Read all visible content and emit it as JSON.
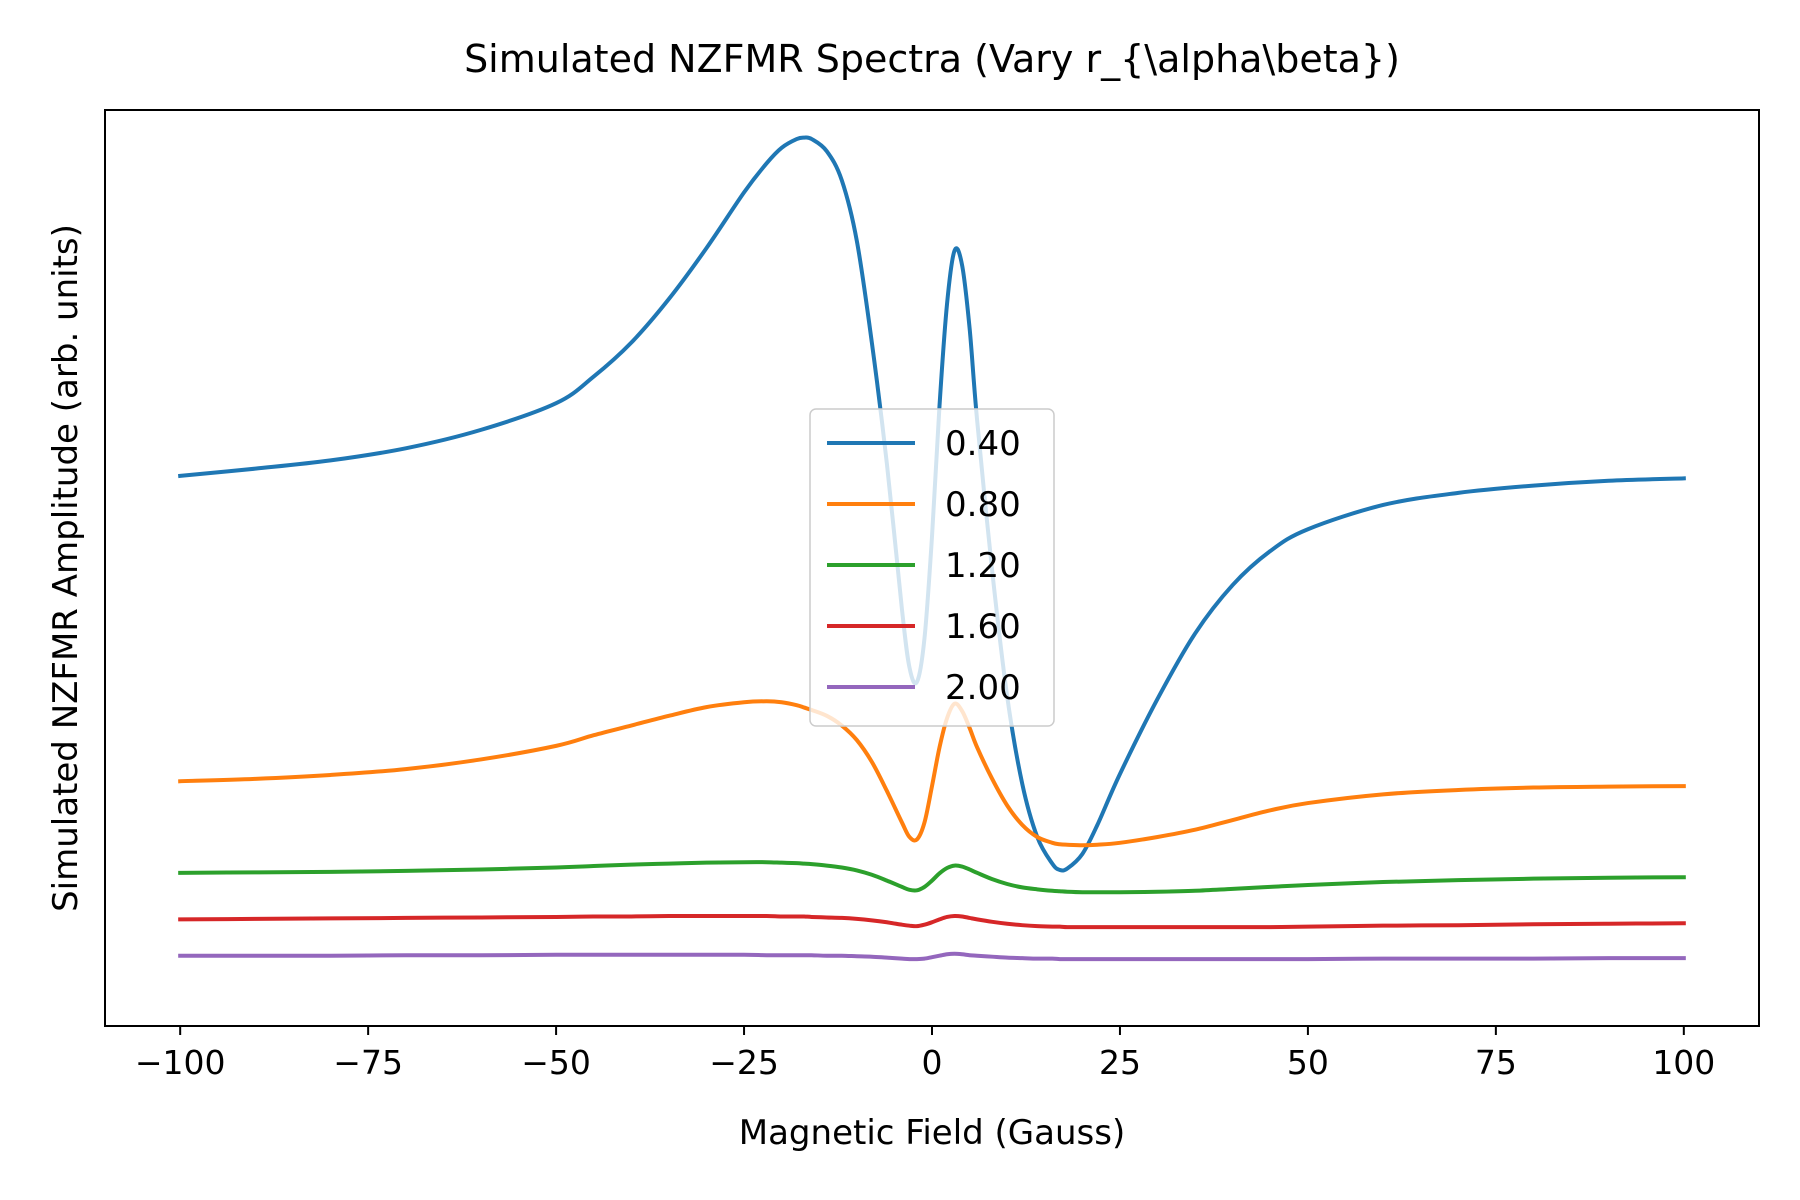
{
  "chart_data": {
    "type": "line",
    "title": "Simulated NZFMR Spectra (Vary r_{\\alpha\\beta})",
    "xlabel": "Magnetic Field (Gauss)",
    "ylabel": "Simulated NZFMR Amplitude (arb. units)",
    "xlim": [
      -110,
      110
    ],
    "ylim": [
      -7.5,
      11.4
    ],
    "x_ticks": [
      -100,
      -75,
      -50,
      -25,
      0,
      25,
      50,
      75,
      100
    ],
    "x_tick_labels": [
      "−100",
      "−75",
      "−50",
      "−25",
      "0",
      "25",
      "50",
      "75",
      "100"
    ],
    "y_ticks_shown": false,
    "grid": false,
    "legend_position": "center",
    "x": [
      -100,
      -90,
      -80,
      -70,
      -60,
      -50,
      -45,
      -40,
      -35,
      -30,
      -25,
      -22,
      -20,
      -18,
      -17,
      -16,
      -14,
      -12,
      -10,
      -8,
      -6,
      -4,
      -3,
      -2,
      -1,
      0,
      1,
      2,
      3,
      4,
      5,
      6,
      8,
      10,
      12,
      14,
      16,
      17,
      18,
      20,
      22,
      25,
      30,
      35,
      40,
      45,
      50,
      60,
      70,
      80,
      90,
      100
    ],
    "series": [
      {
        "name": "0.40",
        "color": "#1f77b4",
        "values": [
          3.85,
          4.0,
          4.17,
          4.42,
          4.8,
          5.35,
          5.9,
          6.6,
          7.5,
          8.55,
          9.7,
          10.3,
          10.62,
          10.8,
          10.83,
          10.8,
          10.55,
          9.95,
          8.7,
          6.6,
          4.1,
          1.1,
          -0.1,
          -0.4,
          0.5,
          2.6,
          5.3,
          7.4,
          8.5,
          8.2,
          6.9,
          5.0,
          1.9,
          -0.7,
          -2.5,
          -3.6,
          -4.15,
          -4.28,
          -4.25,
          -3.95,
          -3.35,
          -2.3,
          -0.75,
          0.6,
          1.6,
          2.3,
          2.75,
          3.25,
          3.5,
          3.65,
          3.75,
          3.8
        ]
      },
      {
        "name": "0.80",
        "color": "#ff7f0e",
        "values": [
          -2.45,
          -2.4,
          -2.32,
          -2.2,
          -2.0,
          -1.72,
          -1.5,
          -1.3,
          -1.1,
          -0.92,
          -0.82,
          -0.8,
          -0.82,
          -0.88,
          -0.93,
          -0.98,
          -1.1,
          -1.3,
          -1.6,
          -2.05,
          -2.65,
          -3.3,
          -3.6,
          -3.65,
          -3.3,
          -2.55,
          -1.75,
          -1.15,
          -0.85,
          -1.0,
          -1.35,
          -1.75,
          -2.4,
          -2.95,
          -3.35,
          -3.6,
          -3.72,
          -3.75,
          -3.76,
          -3.77,
          -3.76,
          -3.72,
          -3.6,
          -3.45,
          -3.25,
          -3.05,
          -2.9,
          -2.72,
          -2.63,
          -2.58,
          -2.56,
          -2.55
        ]
      },
      {
        "name": "1.20",
        "color": "#2ca02c",
        "values": [
          -4.34,
          -4.33,
          -4.32,
          -4.3,
          -4.27,
          -4.23,
          -4.2,
          -4.17,
          -4.15,
          -4.13,
          -4.12,
          -4.12,
          -4.13,
          -4.14,
          -4.15,
          -4.16,
          -4.19,
          -4.23,
          -4.29,
          -4.38,
          -4.5,
          -4.63,
          -4.69,
          -4.7,
          -4.63,
          -4.5,
          -4.35,
          -4.24,
          -4.19,
          -4.21,
          -4.27,
          -4.34,
          -4.47,
          -4.57,
          -4.64,
          -4.68,
          -4.71,
          -4.72,
          -4.73,
          -4.74,
          -4.74,
          -4.74,
          -4.73,
          -4.71,
          -4.67,
          -4.63,
          -4.59,
          -4.53,
          -4.49,
          -4.46,
          -4.44,
          -4.43
        ]
      },
      {
        "name": "1.60",
        "color": "#d62728",
        "values": [
          -5.3,
          -5.29,
          -5.28,
          -5.27,
          -5.26,
          -5.25,
          -5.24,
          -5.24,
          -5.23,
          -5.23,
          -5.23,
          -5.23,
          -5.24,
          -5.24,
          -5.24,
          -5.25,
          -5.26,
          -5.27,
          -5.29,
          -5.32,
          -5.36,
          -5.41,
          -5.43,
          -5.44,
          -5.41,
          -5.36,
          -5.3,
          -5.25,
          -5.23,
          -5.24,
          -5.27,
          -5.3,
          -5.35,
          -5.39,
          -5.42,
          -5.44,
          -5.45,
          -5.45,
          -5.46,
          -5.46,
          -5.46,
          -5.46,
          -5.46,
          -5.46,
          -5.46,
          -5.46,
          -5.45,
          -5.43,
          -5.42,
          -5.4,
          -5.39,
          -5.38
        ]
      },
      {
        "name": "2.00",
        "color": "#9467bd",
        "values": [
          -6.05,
          -6.05,
          -6.05,
          -6.04,
          -6.04,
          -6.03,
          -6.03,
          -6.03,
          -6.03,
          -6.03,
          -6.03,
          -6.04,
          -6.04,
          -6.04,
          -6.04,
          -6.04,
          -6.05,
          -6.05,
          -6.06,
          -6.07,
          -6.09,
          -6.11,
          -6.12,
          -6.12,
          -6.11,
          -6.08,
          -6.05,
          -6.02,
          -6.01,
          -6.02,
          -6.04,
          -6.05,
          -6.07,
          -6.09,
          -6.1,
          -6.11,
          -6.11,
          -6.12,
          -6.12,
          -6.12,
          -6.12,
          -6.12,
          -6.12,
          -6.12,
          -6.12,
          -6.12,
          -6.12,
          -6.11,
          -6.11,
          -6.11,
          -6.1,
          -6.1
        ]
      }
    ]
  }
}
